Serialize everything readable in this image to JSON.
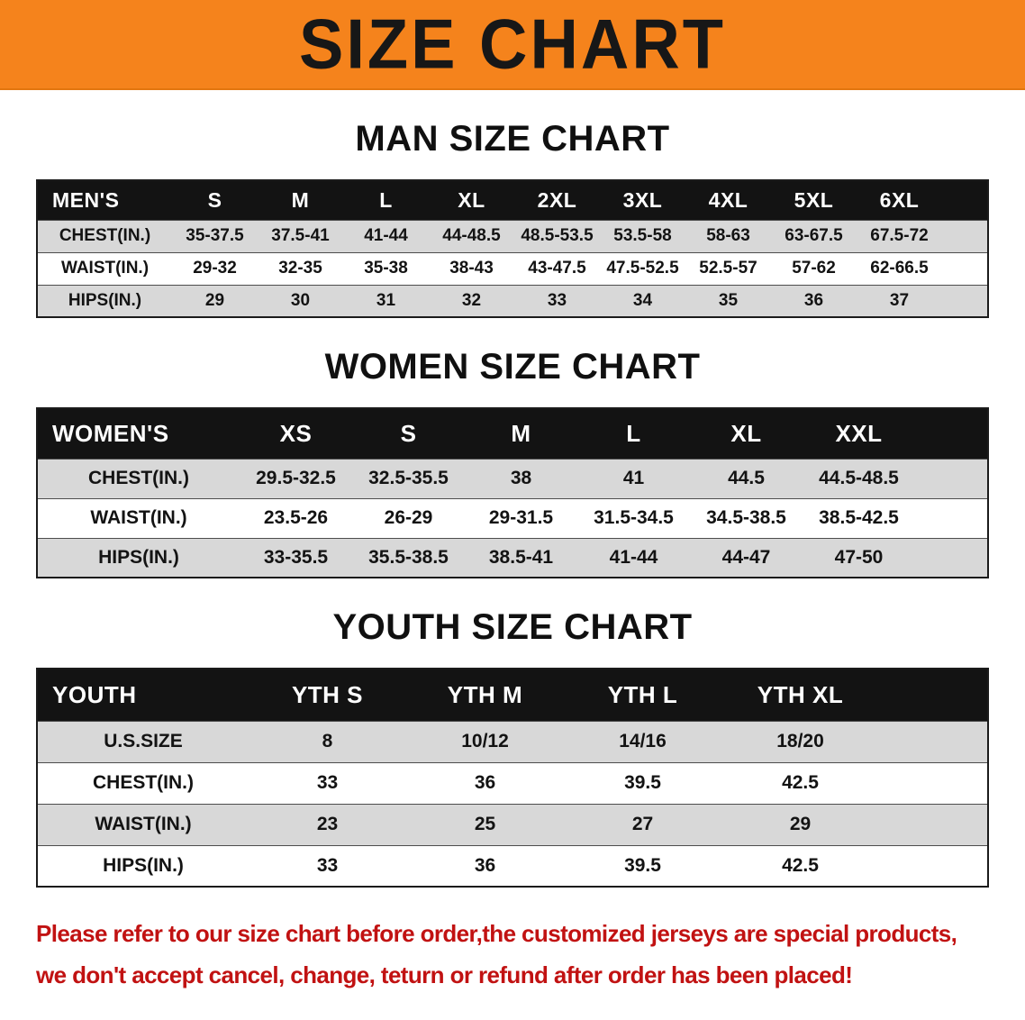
{
  "banner": {
    "title": "SIZE CHART"
  },
  "colors": {
    "banner_bg": "#F5831C",
    "table_header_bg": "#131313",
    "row_stripe": "#D8D8D8",
    "note_text": "#C11212"
  },
  "sections": {
    "men": {
      "heading": "MAN SIZE CHART",
      "table": {
        "header": [
          "MEN'S",
          "S",
          "M",
          "L",
          "XL",
          "2XL",
          "3XL",
          "4XL",
          "5XL",
          "6XL"
        ],
        "rows": [
          {
            "label": "CHEST(IN.)",
            "values": [
              "35-37.5",
              "37.5-41",
              "41-44",
              "44-48.5",
              "48.5-53.5",
              "53.5-58",
              "58-63",
              "63-67.5",
              "67.5-72"
            ]
          },
          {
            "label": "WAIST(IN.)",
            "values": [
              "29-32",
              "32-35",
              "35-38",
              "38-43",
              "43-47.5",
              "47.5-52.5",
              "52.5-57",
              "57-62",
              "62-66.5"
            ]
          },
          {
            "label": "HIPS(IN.)",
            "values": [
              "29",
              "30",
              "31",
              "32",
              "33",
              "34",
              "35",
              "36",
              "37"
            ]
          }
        ]
      }
    },
    "women": {
      "heading": "WOMEN SIZE CHART",
      "table": {
        "header": [
          "WOMEN'S",
          "XS",
          "S",
          "M",
          "L",
          "XL",
          "XXL"
        ],
        "rows": [
          {
            "label": "CHEST(IN.)",
            "values": [
              "29.5-32.5",
              "32.5-35.5",
              "38",
              "41",
              "44.5",
              "44.5-48.5"
            ]
          },
          {
            "label": "WAIST(IN.)",
            "values": [
              "23.5-26",
              "26-29",
              "29-31.5",
              "31.5-34.5",
              "34.5-38.5",
              "38.5-42.5"
            ]
          },
          {
            "label": "HIPS(IN.)",
            "values": [
              "33-35.5",
              "35.5-38.5",
              "38.5-41",
              "41-44",
              "44-47",
              "47-50"
            ]
          }
        ]
      }
    },
    "youth": {
      "heading": "YOUTH SIZE CHART",
      "table": {
        "header": [
          "YOUTH",
          "YTH S",
          "YTH M",
          "YTH L",
          "YTH XL"
        ],
        "rows": [
          {
            "label": "U.S.SIZE",
            "values": [
              "8",
              "10/12",
              "14/16",
              "18/20"
            ]
          },
          {
            "label": "CHEST(IN.)",
            "values": [
              "33",
              "36",
              "39.5",
              "42.5"
            ]
          },
          {
            "label": "WAIST(IN.)",
            "values": [
              "23",
              "25",
              "27",
              "29"
            ]
          },
          {
            "label": "HIPS(IN.)",
            "values": [
              "33",
              "36",
              "39.5",
              "42.5"
            ]
          }
        ]
      }
    }
  },
  "note": {
    "line1": "Please refer to our size chart before order,the customized jerseys are special products,",
    "line2": "we don't accept cancel, change, teturn or refund after order has been placed!"
  }
}
